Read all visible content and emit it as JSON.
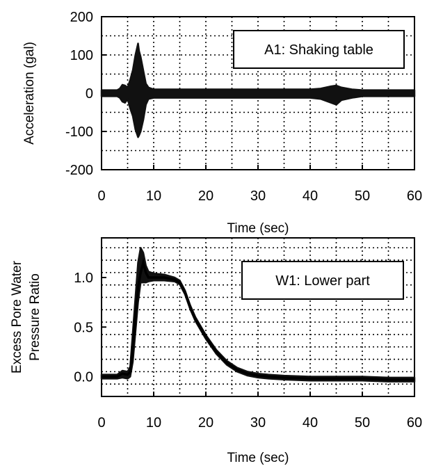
{
  "chart_data": [
    {
      "type": "line",
      "title": "",
      "xlabel": "Time (sec)",
      "ylabel": "Acceleration (gal)",
      "xlim": [
        0,
        60
      ],
      "ylim": [
        -200,
        200
      ],
      "xticks": [
        "0",
        "10",
        "20",
        "30",
        "40",
        "50",
        "60"
      ],
      "yticks": [
        "200",
        "100",
        "0",
        "-100",
        "-200"
      ],
      "grid": true,
      "annotation": "A1: Shaking table",
      "series": [
        {
          "x": [
            0,
            3,
            3.5,
            4,
            4.5,
            5,
            5.5,
            6,
            6.5,
            7,
            7.2,
            7.5,
            8,
            8.5,
            9,
            10,
            15,
            20,
            25,
            30,
            35,
            40,
            42,
            44,
            45,
            46,
            48,
            50,
            55,
            60
          ],
          "y_max": [
            8,
            8,
            12,
            22,
            20,
            15,
            35,
            60,
            100,
            130,
            110,
            95,
            60,
            25,
            15,
            10,
            10,
            10,
            10,
            10,
            10,
            10,
            12,
            18,
            20,
            15,
            10,
            8,
            8,
            8
          ],
          "y_min": [
            -8,
            -8,
            -12,
            -22,
            -25,
            -15,
            -40,
            -60,
            -95,
            -115,
            -110,
            -100,
            -70,
            -30,
            -15,
            -12,
            -12,
            -12,
            -12,
            -12,
            -12,
            -12,
            -15,
            -25,
            -30,
            -18,
            -12,
            -8,
            -8,
            -8
          ]
        }
      ]
    },
    {
      "type": "line",
      "title": "",
      "xlabel": "Time (sec)",
      "ylabel": "Excess Pore Water Pressure Ratio",
      "xlim": [
        0,
        60
      ],
      "ylim": [
        -0.2,
        1.4
      ],
      "xticks": [
        "0",
        "10",
        "20",
        "30",
        "40",
        "50",
        "60"
      ],
      "yticks": [
        "1.0",
        "0.5",
        "0.0"
      ],
      "grid": true,
      "annotation": "W1: Lower part",
      "series": [
        {
          "x": [
            0,
            3,
            4,
            5,
            5.5,
            6,
            6.5,
            7,
            7.5,
            8,
            8.5,
            9,
            10,
            12,
            14,
            15,
            16,
            17,
            18,
            20,
            22,
            24,
            26,
            28,
            30,
            32,
            35,
            40,
            45,
            50,
            55,
            60
          ],
          "y": [
            0.0,
            0.0,
            0.03,
            0.02,
            0.05,
            0.3,
            0.6,
            0.9,
            1.05,
            1.15,
            1.05,
            1.0,
            1.0,
            1.0,
            0.98,
            0.95,
            0.85,
            0.7,
            0.58,
            0.4,
            0.25,
            0.14,
            0.07,
            0.03,
            0.01,
            0.0,
            -0.01,
            -0.02,
            -0.02,
            -0.02,
            -0.03,
            -0.03
          ],
          "y_max": [
            0.02,
            0.02,
            0.06,
            0.05,
            0.1,
            0.45,
            0.8,
            1.15,
            1.3,
            1.25,
            1.12,
            1.06,
            1.04,
            1.03,
            1.0,
            0.97,
            0.87,
            0.72,
            0.6,
            0.42,
            0.27,
            0.16,
            0.09,
            0.05,
            0.03,
            0.02,
            0.01,
            0.0,
            0.0,
            0.0,
            -0.01,
            -0.01
          ],
          "y_min": [
            -0.02,
            -0.02,
            -0.01,
            -0.02,
            0.0,
            0.15,
            0.45,
            0.75,
            0.95,
            0.95,
            0.95,
            0.96,
            0.97,
            0.97,
            0.96,
            0.93,
            0.83,
            0.68,
            0.56,
            0.38,
            0.23,
            0.12,
            0.05,
            0.01,
            -0.01,
            -0.02,
            -0.03,
            -0.04,
            -0.04,
            -0.04,
            -0.05,
            -0.05
          ]
        }
      ]
    }
  ]
}
